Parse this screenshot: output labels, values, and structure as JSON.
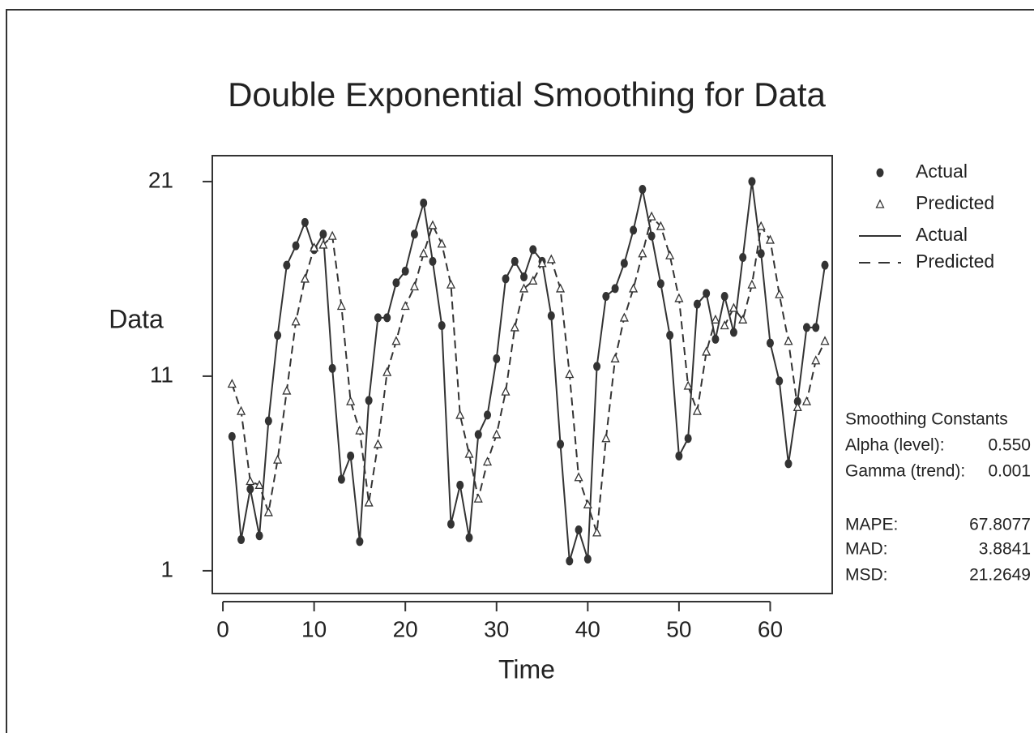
{
  "chart_data": {
    "type": "line",
    "title": "Double Exponential Smoothing for Data",
    "xlabel": "Time",
    "ylabel": "Data",
    "x": [
      1,
      2,
      3,
      4,
      5,
      6,
      7,
      8,
      9,
      10,
      11,
      12,
      13,
      14,
      15,
      16,
      17,
      18,
      19,
      20,
      21,
      22,
      23,
      24,
      25,
      26,
      27,
      28,
      29,
      30,
      31,
      32,
      33,
      34,
      35,
      36,
      37,
      38,
      39,
      40,
      41,
      42,
      43,
      44,
      45,
      46,
      47,
      48,
      49,
      50,
      51,
      52,
      53,
      54,
      55,
      56,
      57,
      58,
      59,
      60,
      61,
      62,
      63,
      64,
      65,
      66
    ],
    "series": [
      {
        "name": "Actual",
        "color": "#333333",
        "marker": "dot",
        "dash": false,
        "values": [
          7.9,
          2.6,
          5.2,
          2.8,
          8.7,
          13.1,
          16.7,
          17.7,
          18.9,
          17.5,
          18.3,
          11.4,
          5.7,
          6.9,
          2.5,
          9.75,
          14.0,
          14.0,
          15.8,
          16.4,
          18.3,
          19.9,
          16.9,
          13.6,
          3.4,
          5.4,
          2.7,
          8.0,
          9.0,
          11.9,
          16.0,
          16.9,
          16.1,
          17.5,
          16.9,
          14.1,
          7.5,
          1.5,
          3.1,
          1.6,
          11.5,
          15.1,
          15.5,
          16.8,
          18.5,
          20.6,
          18.2,
          15.75,
          13.1,
          6.9,
          7.8,
          14.7,
          15.25,
          12.9,
          15.1,
          13.25,
          17.1,
          21.0,
          17.3,
          12.7,
          10.75,
          6.5,
          9.7,
          13.5,
          13.5,
          16.7
        ]
      },
      {
        "name": "Predicted",
        "color": "#333333",
        "marker": "triangle",
        "dash": true,
        "values": [
          10.6,
          9.2,
          5.6,
          5.4,
          4.0,
          6.7,
          10.25,
          13.8,
          16.0,
          17.6,
          17.75,
          18.2,
          14.6,
          9.7,
          8.2,
          4.5,
          7.5,
          11.2,
          12.8,
          14.6,
          15.6,
          17.3,
          18.75,
          17.8,
          15.7,
          9.0,
          7.0,
          4.7,
          6.6,
          8.0,
          10.2,
          13.5,
          15.5,
          15.9,
          16.8,
          17.0,
          15.5,
          11.1,
          5.8,
          4.4,
          2.96,
          7.8,
          11.9,
          14.0,
          15.5,
          17.3,
          19.2,
          18.7,
          17.2,
          15.0,
          10.5,
          9.2,
          12.25,
          13.9,
          13.6,
          14.5,
          13.9,
          15.7,
          18.7,
          18.0,
          15.2,
          12.8,
          9.4,
          9.7,
          11.8,
          12.8
        ]
      }
    ],
    "xlim": [
      -1.16,
      66.8
    ],
    "ylim": [
      -0.17,
      22.33
    ],
    "xticks": [
      0,
      10,
      20,
      30,
      40,
      50,
      60
    ],
    "yticks": [
      1,
      11,
      21
    ],
    "stats_title": "Smoothing Constants",
    "stats": [
      {
        "label": "Alpha (level):",
        "value": "0.550"
      },
      {
        "label": "Gamma (trend):",
        "value": "0.001"
      },
      {
        "label": "MAPE:",
        "value": "67.8077"
      },
      {
        "label": "MAD:",
        "value": "3.8841"
      },
      {
        "label": "MSD:",
        "value": "21.2649"
      }
    ]
  }
}
